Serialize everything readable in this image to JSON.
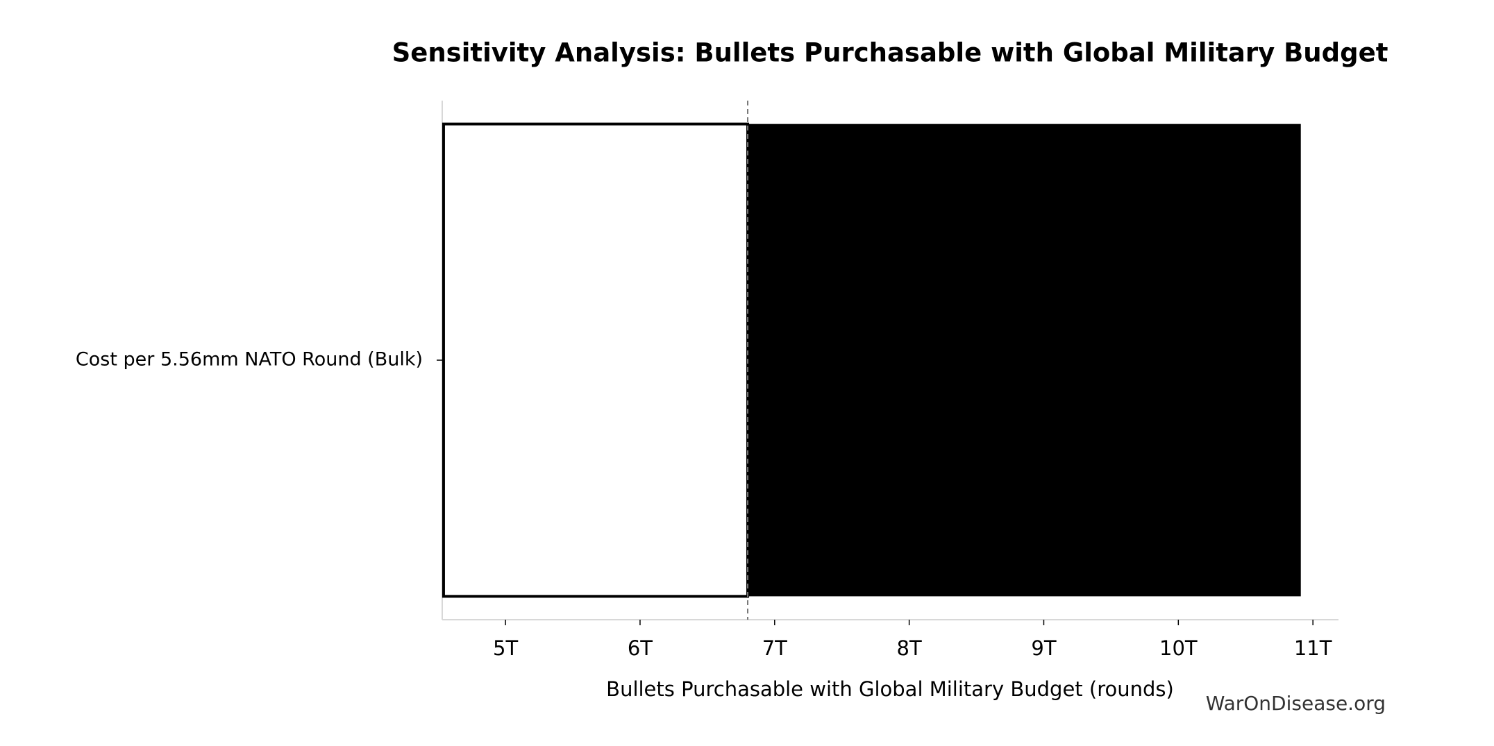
{
  "chart_data": {
    "type": "tornado",
    "title": "Sensitivity Analysis: Bullets Purchasable with Global Military Budget",
    "xlabel": "Bullets Purchasable with Global Military Budget (rounds)",
    "watermark": "WarOnDisease.org",
    "categories": [
      "Cost per 5.56mm NATO Round (Bulk)"
    ],
    "baseline": 6800000000000,
    "low": [
      4540000000000
    ],
    "high": [
      10910000000000
    ],
    "low_color": "#ffffff",
    "high_color": "#000000",
    "xlim": [
      4530000000000,
      11190000000000
    ],
    "xticks": [
      {
        "value": 5000000000000,
        "label": "5T"
      },
      {
        "value": 6000000000000,
        "label": "6T"
      },
      {
        "value": 7000000000000,
        "label": "7T"
      },
      {
        "value": 8000000000000,
        "label": "8T"
      },
      {
        "value": 9000000000000,
        "label": "9T"
      },
      {
        "value": 10000000000000,
        "label": "10T"
      },
      {
        "value": 11000000000000,
        "label": "11T"
      }
    ]
  }
}
